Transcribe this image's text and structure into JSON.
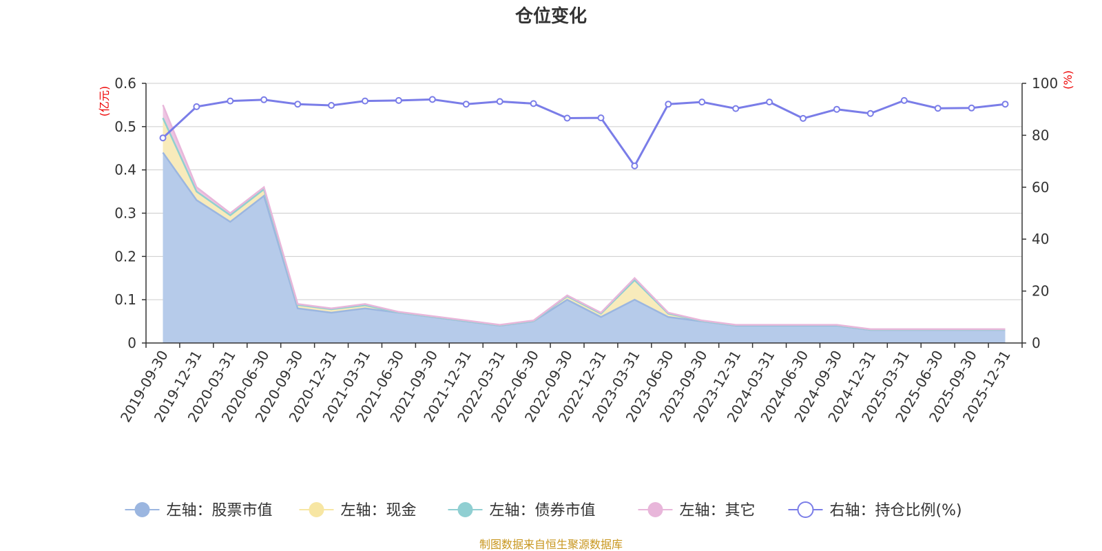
{
  "chart_data": {
    "type": "area",
    "title": "仓位变化",
    "left_axis_unit": "(亿元)",
    "right_axis_unit": "(%)",
    "left_ylim": [
      0,
      0.6
    ],
    "left_ticks": [
      "0",
      "0.1",
      "0.2",
      "0.3",
      "0.4",
      "0.5",
      "0.6"
    ],
    "right_ylim": [
      0,
      100
    ],
    "right_ticks": [
      "0",
      "20",
      "40",
      "60",
      "80",
      "100"
    ],
    "categories": [
      "2019-09-30",
      "2019-12-31",
      "2020-03-31",
      "2020-06-30",
      "2020-09-30",
      "2020-12-31",
      "2021-03-31",
      "2021-06-30",
      "2021-09-30",
      "2021-12-31",
      "2022-03-31",
      "2022-06-30",
      "2022-09-30",
      "2022-12-31",
      "2023-03-31",
      "2023-06-30",
      "2023-09-30",
      "2023-12-31",
      "2024-03-31",
      "2024-06-30",
      "2024-09-30",
      "2024-12-31",
      "2025-03-31",
      "2025-06-30",
      "2025-09-30",
      "2025-12-31"
    ],
    "series": [
      {
        "name": "左轴：股票市值",
        "axis": "left",
        "color": "#9bb6e0",
        "fill": "#b6cbea",
        "values": [
          0.44,
          0.33,
          0.28,
          0.34,
          0.08,
          0.07,
          0.08,
          0.07,
          0.06,
          0.05,
          0.04,
          0.05,
          0.1,
          0.06,
          0.1,
          0.06,
          0.05,
          0.04,
          0.04,
          0.04,
          0.04,
          0.03,
          0.03,
          0.03,
          0.03,
          0.03
        ]
      },
      {
        "name": "左轴：现金",
        "axis": "left",
        "color": "#f7e6a3",
        "fill": "#f8ebbb",
        "values": [
          0.08,
          0.02,
          0.015,
          0.015,
          0.008,
          0.008,
          0.007,
          0.001,
          0.001,
          0.001,
          0.001,
          0.001,
          0.008,
          0.008,
          0.045,
          0.008,
          0.001,
          0.001,
          0.001,
          0.001,
          0.001,
          0.001,
          0.001,
          0.001,
          0.001,
          0.001
        ]
      },
      {
        "name": "左轴：债券市值",
        "axis": "left",
        "color": "#90cfd2",
        "fill": "#aedcde",
        "values": [
          0,
          0,
          0,
          0,
          0,
          0,
          0,
          0,
          0,
          0,
          0,
          0,
          0,
          0,
          0,
          0,
          0,
          0,
          0,
          0,
          0,
          0,
          0,
          0,
          0,
          0
        ]
      },
      {
        "name": "左轴：其它",
        "axis": "left",
        "color": "#e8b6da",
        "fill": "#edc5e2",
        "values": [
          0.03,
          0.01,
          0.005,
          0.005,
          0.002,
          0.002,
          0.003,
          0.001,
          0.001,
          0.001,
          0.001,
          0.001,
          0.002,
          0.002,
          0.005,
          0.002,
          0.001,
          0.001,
          0.001,
          0.001,
          0.001,
          0.001,
          0.001,
          0.001,
          0.001,
          0.001
        ]
      },
      {
        "name": "右轴：持仓比例(%)",
        "axis": "right",
        "color": "#7a7de8",
        "values": [
          79,
          91,
          93.2,
          93.7,
          92,
          91.5,
          93.2,
          93.4,
          93.8,
          92,
          93,
          92.2,
          86.6,
          86.7,
          68.2,
          92,
          92.8,
          90.3,
          92.8,
          86.5,
          90,
          88.4,
          93.4,
          90.4,
          90.5,
          92
        ]
      }
    ],
    "legend_position": "bottom",
    "grid": true
  },
  "footer": {
    "source": "制图数据来自恒生聚源数据库"
  }
}
